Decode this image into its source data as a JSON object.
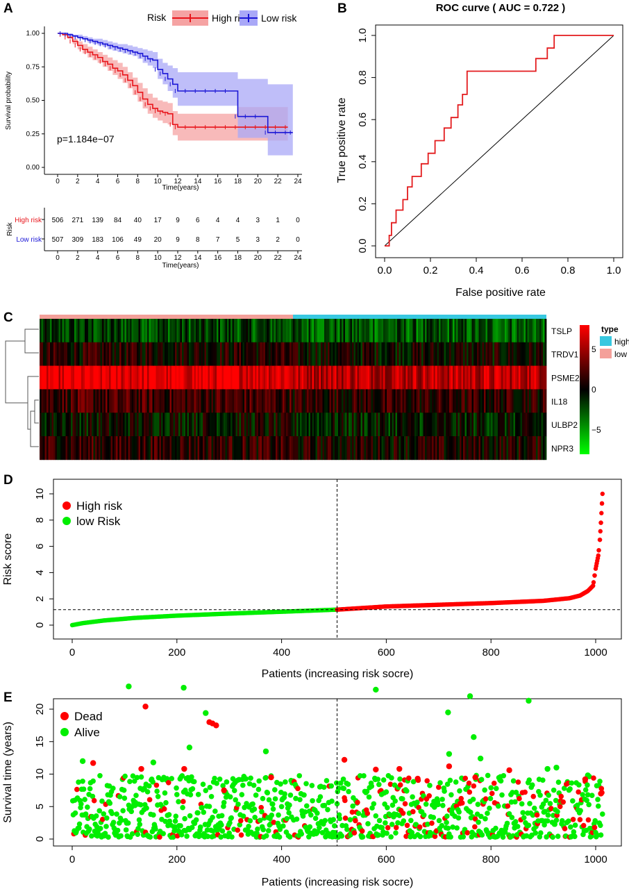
{
  "colors": {
    "high": "#e8141a",
    "low": "#1a16d6",
    "high_band": "#f5a3a3",
    "low_band": "#a9a8f7",
    "roc": "#e31a1c",
    "dot_high": "#ff0000",
    "dot_low": "#00ee00",
    "type_high": "#38c8e0",
    "type_low": "#f4a09a"
  },
  "chart_data": [
    {
      "panel": "A",
      "type": "line",
      "subtype": "kaplan-meier",
      "legend_title": "Risk",
      "legend": [
        "High risk",
        "Low risk"
      ],
      "xlabel": "Time(years)",
      "ylabel": "Survival probability",
      "xlim": [
        0,
        24
      ],
      "ylim": [
        0,
        1
      ],
      "xticks": [
        "0",
        "2",
        "4",
        "6",
        "8",
        "10",
        "12",
        "14",
        "16",
        "18",
        "20",
        "22",
        "24"
      ],
      "yticks": [
        "0.00",
        "0.25",
        "0.50",
        "0.75",
        "1.00"
      ],
      "annotation": "p=1.184e−07",
      "series": [
        {
          "name": "High risk",
          "x": [
            0,
            0.5,
            1,
            1.5,
            2,
            2.5,
            3,
            3.5,
            4,
            4.5,
            5,
            5.5,
            6,
            6.5,
            7,
            7.5,
            8,
            8.5,
            9,
            9.5,
            10,
            10.5,
            11,
            11.5,
            12,
            13,
            14,
            15,
            16,
            17,
            18,
            19,
            20,
            21,
            22,
            23
          ],
          "values": [
            1,
            0.99,
            0.97,
            0.94,
            0.91,
            0.88,
            0.86,
            0.84,
            0.82,
            0.79,
            0.77,
            0.74,
            0.72,
            0.69,
            0.65,
            0.61,
            0.56,
            0.51,
            0.47,
            0.44,
            0.42,
            0.41,
            0.4,
            0.32,
            0.3,
            0.3,
            0.3,
            0.3,
            0.3,
            0.3,
            0.3,
            0.3,
            0.3,
            0.3,
            0.3,
            0.3
          ],
          "lower": [
            1,
            0.985,
            0.96,
            0.92,
            0.88,
            0.85,
            0.82,
            0.8,
            0.78,
            0.75,
            0.72,
            0.69,
            0.66,
            0.63,
            0.59,
            0.54,
            0.49,
            0.44,
            0.4,
            0.37,
            0.35,
            0.33,
            0.32,
            0.24,
            0.2,
            0.2,
            0.2,
            0.2,
            0.2,
            0.2,
            0.2,
            0.2,
            0.2,
            0.2,
            0.2,
            0.2
          ],
          "upper": [
            1,
            0.995,
            0.98,
            0.96,
            0.94,
            0.92,
            0.9,
            0.88,
            0.86,
            0.84,
            0.82,
            0.8,
            0.78,
            0.75,
            0.71,
            0.67,
            0.63,
            0.59,
            0.55,
            0.52,
            0.5,
            0.49,
            0.48,
            0.42,
            0.4,
            0.4,
            0.4,
            0.4,
            0.4,
            0.4,
            0.45,
            0.45,
            0.45,
            0.45,
            0.45,
            0.45
          ]
        },
        {
          "name": "Low risk",
          "x": [
            0,
            0.5,
            1,
            1.5,
            2,
            2.5,
            3,
            3.5,
            4,
            4.5,
            5,
            5.5,
            6,
            6.5,
            7,
            7.5,
            8,
            8.5,
            9,
            9.5,
            10,
            10.5,
            11,
            11.5,
            12,
            13,
            14,
            15,
            16,
            17,
            18,
            19,
            20,
            21,
            22,
            23,
            23.5
          ],
          "values": [
            1,
            1,
            0.99,
            0.98,
            0.97,
            0.96,
            0.95,
            0.94,
            0.93,
            0.92,
            0.91,
            0.9,
            0.89,
            0.88,
            0.87,
            0.86,
            0.85,
            0.83,
            0.81,
            0.8,
            0.73,
            0.7,
            0.66,
            0.62,
            0.57,
            0.57,
            0.57,
            0.57,
            0.57,
            0.57,
            0.38,
            0.38,
            0.38,
            0.26,
            0.26,
            0.26,
            0.26
          ],
          "lower": [
            1,
            1,
            0.98,
            0.97,
            0.96,
            0.95,
            0.93,
            0.92,
            0.91,
            0.9,
            0.88,
            0.87,
            0.86,
            0.85,
            0.84,
            0.83,
            0.81,
            0.78,
            0.76,
            0.74,
            0.66,
            0.62,
            0.57,
            0.52,
            0.46,
            0.46,
            0.46,
            0.46,
            0.46,
            0.46,
            0.22,
            0.22,
            0.22,
            0.09,
            0.09,
            0.09,
            0.09
          ],
          "upper": [
            1,
            1,
            1,
            0.99,
            0.99,
            0.98,
            0.97,
            0.96,
            0.96,
            0.95,
            0.94,
            0.93,
            0.92,
            0.92,
            0.91,
            0.9,
            0.89,
            0.88,
            0.87,
            0.86,
            0.81,
            0.78,
            0.76,
            0.74,
            0.71,
            0.71,
            0.71,
            0.71,
            0.71,
            0.71,
            0.66,
            0.66,
            0.66,
            0.62,
            0.62,
            0.62,
            0.62
          ]
        }
      ]
    },
    {
      "panel": "A-table",
      "type": "table",
      "ylabel": "Risk",
      "xlabel": "Time(years)",
      "xticks": [
        "0",
        "2",
        "4",
        "6",
        "8",
        "10",
        "12",
        "14",
        "16",
        "18",
        "20",
        "22",
        "24"
      ],
      "rows": [
        {
          "label": "High risk",
          "counts": [
            "506",
            "271",
            "139",
            "84",
            "40",
            "17",
            "9",
            "6",
            "4",
            "4",
            "3",
            "1",
            "0"
          ]
        },
        {
          "label": "Low risk",
          "counts": [
            "507",
            "309",
            "183",
            "106",
            "49",
            "20",
            "9",
            "8",
            "7",
            "5",
            "3",
            "2",
            "0"
          ]
        }
      ]
    },
    {
      "panel": "B",
      "type": "line",
      "subtype": "roc",
      "title": "ROC curve ( AUC =  0.722 )",
      "xlabel": "False positive rate",
      "ylabel": "True positive rate",
      "xlim": [
        0,
        1
      ],
      "ylim": [
        0,
        1
      ],
      "xticks": [
        "0.0",
        "0.2",
        "0.4",
        "0.6",
        "0.8",
        "1.0"
      ],
      "yticks": [
        "0.0",
        "0.2",
        "0.4",
        "0.6",
        "0.8",
        "1.0"
      ],
      "x": [
        0,
        0.02,
        0.02,
        0.03,
        0.03,
        0.05,
        0.05,
        0.08,
        0.08,
        0.1,
        0.1,
        0.12,
        0.12,
        0.16,
        0.16,
        0.19,
        0.19,
        0.22,
        0.22,
        0.26,
        0.26,
        0.29,
        0.29,
        0.32,
        0.32,
        0.34,
        0.34,
        0.36,
        0.36,
        0.66,
        0.66,
        0.71,
        0.71,
        0.74,
        0.74,
        1.0
      ],
      "values": [
        0,
        0,
        0.05,
        0.05,
        0.11,
        0.11,
        0.17,
        0.17,
        0.22,
        0.22,
        0.28,
        0.28,
        0.33,
        0.33,
        0.39,
        0.39,
        0.44,
        0.44,
        0.5,
        0.5,
        0.56,
        0.56,
        0.61,
        0.61,
        0.67,
        0.67,
        0.72,
        0.72,
        0.83,
        0.83,
        0.89,
        0.89,
        0.94,
        0.94,
        1.0,
        1.0
      ]
    },
    {
      "panel": "C",
      "type": "heatmap",
      "genes": [
        "TSLP",
        "TRDV1",
        "PSME2",
        "IL18",
        "ULBP2",
        "NPR3"
      ],
      "gene_means": [
        -2.5,
        0.5,
        6.5,
        1.5,
        -0.5,
        1.0
      ],
      "columns": 1013,
      "split_at": 506,
      "colorbar_ticks": [
        "5",
        "0",
        "−5"
      ],
      "colorbar_range": [
        -8,
        8
      ],
      "legend_title": "type",
      "legend": [
        "high",
        "low"
      ]
    },
    {
      "panel": "D",
      "type": "scatter",
      "xlabel": "Patients (increasing risk socre)",
      "ylabel": "Risk score",
      "xlim": [
        0,
        1013
      ],
      "ylim": [
        0,
        10
      ],
      "xticks": [
        "0",
        "200",
        "400",
        "600",
        "800",
        "1000"
      ],
      "yticks": [
        "0",
        "2",
        "4",
        "6",
        "8",
        "10"
      ],
      "legend": [
        "High risk",
        "low Risk"
      ],
      "cutoff_x": 506,
      "cutoff_y": 1.18,
      "curve_x": [
        0,
        20,
        60,
        120,
        200,
        300,
        400,
        506,
        600,
        700,
        800,
        900,
        950,
        970,
        985,
        995,
        1000,
        1005,
        1008,
        1010,
        1013
      ],
      "curve_values": [
        0,
        0.15,
        0.35,
        0.55,
        0.72,
        0.88,
        1.02,
        1.18,
        1.42,
        1.55,
        1.68,
        1.85,
        2.05,
        2.25,
        2.6,
        3.0,
        4.3,
        5.3,
        6.5,
        7.8,
        10.0
      ]
    },
    {
      "panel": "E",
      "type": "scatter",
      "xlabel": "Patients (increasing risk socre)",
      "ylabel": "Survival time (years)",
      "xlim": [
        0,
        1013
      ],
      "ylim": [
        0,
        24
      ],
      "xticks": [
        "0",
        "200",
        "400",
        "600",
        "800",
        "1000"
      ],
      "yticks": [
        "0",
        "5",
        "10",
        "15",
        "20"
      ],
      "legend": [
        "Dead",
        "Alive"
      ],
      "cutoff_x": 506,
      "highlight_dead": {
        "x": [
          40,
          132,
          140,
          262,
          268,
          275,
          214,
          290,
          380,
          520,
          580,
          625,
          660,
          720,
          770,
          835,
          980,
          1010
        ],
        "values": [
          11.7,
          10.8,
          20.4,
          18.0,
          17.8,
          17.5,
          10.8,
          7.5,
          9.5,
          12.2,
          10.7,
          10.8,
          9.3,
          11.2,
          9.5,
          10.6,
          9.2,
          7.0
        ]
      },
      "highlight_alive": {
        "x": [
          108,
          213,
          20,
          155,
          255,
          224,
          370,
          580,
          718,
          720,
          760,
          767,
          780,
          872,
          908,
          925,
          985
        ],
        "values": [
          23.5,
          23.3,
          12.0,
          11.8,
          19.4,
          14.1,
          13.5,
          23.0,
          19.5,
          13.1,
          22.0,
          15.7,
          12.4,
          21.3,
          10.8,
          11.0,
          9.8
        ]
      }
    }
  ]
}
